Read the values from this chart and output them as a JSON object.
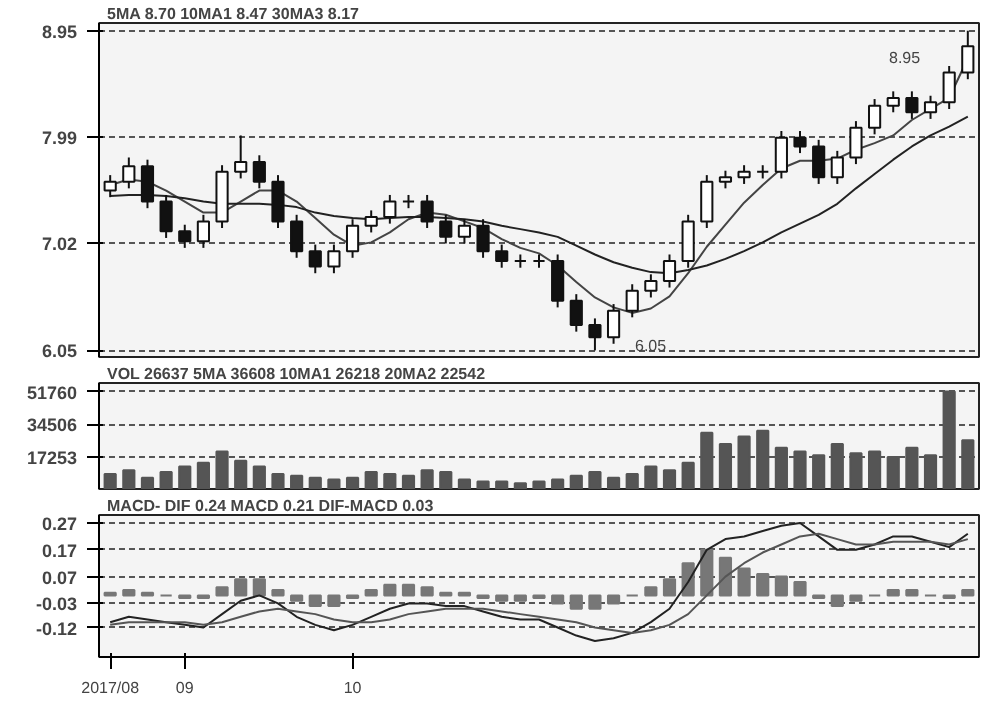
{
  "chart_data": [
    {
      "type": "candlestick",
      "categories": [
        "2017/08",
        null,
        null,
        null,
        "09",
        null,
        null,
        null,
        null,
        null,
        null,
        null,
        null,
        "10",
        null,
        null,
        null,
        null,
        null,
        null,
        null,
        null,
        null,
        null,
        null,
        null,
        null,
        null,
        null,
        null,
        null,
        null,
        null,
        null,
        null,
        null,
        null,
        null,
        null,
        null,
        null,
        null,
        null,
        null,
        null,
        null,
        null
      ],
      "ohlc": [
        [
          7.5,
          7.64,
          7.44,
          7.58
        ],
        [
          7.58,
          7.8,
          7.52,
          7.72
        ],
        [
          7.72,
          7.78,
          7.34,
          7.4
        ],
        [
          7.4,
          7.46,
          7.07,
          7.13
        ],
        [
          7.13,
          7.19,
          6.98,
          7.04
        ],
        [
          7.04,
          7.28,
          6.98,
          7.22
        ],
        [
          7.22,
          7.73,
          7.16,
          7.67
        ],
        [
          7.67,
          8.0,
          7.61,
          7.76
        ],
        [
          7.76,
          7.82,
          7.52,
          7.58
        ],
        [
          7.58,
          7.64,
          7.16,
          7.22
        ],
        [
          7.22,
          7.28,
          6.89,
          6.95
        ],
        [
          6.95,
          7.01,
          6.75,
          6.81
        ],
        [
          6.81,
          7.01,
          6.75,
          6.95
        ],
        [
          6.95,
          7.24,
          6.89,
          7.18
        ],
        [
          7.18,
          7.32,
          7.12,
          7.26
        ],
        [
          7.26,
          7.46,
          7.2,
          7.4
        ],
        [
          7.4,
          7.46,
          7.34,
          7.4
        ],
        [
          7.4,
          7.46,
          7.16,
          7.22
        ],
        [
          7.22,
          7.28,
          7.02,
          7.08
        ],
        [
          7.08,
          7.24,
          7.02,
          7.18
        ],
        [
          7.18,
          7.24,
          6.89,
          6.95
        ],
        [
          6.95,
          7.01,
          6.8,
          6.86
        ],
        [
          6.86,
          6.92,
          6.8,
          6.86
        ],
        [
          6.86,
          6.92,
          6.8,
          6.86
        ],
        [
          6.86,
          6.92,
          6.44,
          6.5
        ],
        [
          6.5,
          6.56,
          6.22,
          6.28
        ],
        [
          6.28,
          6.34,
          6.05,
          6.17
        ],
        [
          6.17,
          6.47,
          6.11,
          6.41
        ],
        [
          6.41,
          6.65,
          6.35,
          6.59
        ],
        [
          6.59,
          6.74,
          6.53,
          6.68
        ],
        [
          6.68,
          6.92,
          6.62,
          6.86
        ],
        [
          6.86,
          7.28,
          6.8,
          7.22
        ],
        [
          7.22,
          7.64,
          7.16,
          7.58
        ],
        [
          7.58,
          7.68,
          7.52,
          7.62
        ],
        [
          7.62,
          7.73,
          7.56,
          7.67
        ],
        [
          7.67,
          7.73,
          7.61,
          7.67
        ],
        [
          7.67,
          8.04,
          7.61,
          7.98
        ],
        [
          7.98,
          8.04,
          7.84,
          7.9
        ],
        [
          7.9,
          7.96,
          7.56,
          7.62
        ],
        [
          7.62,
          7.86,
          7.56,
          7.8
        ],
        [
          7.8,
          8.13,
          7.74,
          8.07
        ],
        [
          8.07,
          8.33,
          8.01,
          8.27
        ],
        [
          8.27,
          8.4,
          8.21,
          8.34
        ],
        [
          8.34,
          8.4,
          8.15,
          8.21
        ],
        [
          8.21,
          8.36,
          8.15,
          8.3
        ],
        [
          8.3,
          8.63,
          8.24,
          8.57
        ],
        [
          8.57,
          8.95,
          8.51,
          8.81
        ]
      ],
      "series": [
        {
          "type": "line",
          "color": "#444444",
          "values": [
            7.55,
            7.6,
            7.58,
            7.5,
            7.4,
            7.3,
            7.3,
            7.4,
            7.5,
            7.5,
            7.4,
            7.25,
            7.1,
            7.0,
            7.03,
            7.12,
            7.24,
            7.3,
            7.28,
            7.22,
            7.16,
            7.06,
            6.98,
            6.93,
            6.82,
            6.67,
            6.53,
            6.44,
            6.39,
            6.43,
            6.54,
            6.75,
            6.99,
            7.19,
            7.39,
            7.55,
            7.7,
            7.77,
            7.77,
            7.79,
            7.87,
            7.93,
            8.0,
            8.14,
            8.24,
            8.34,
            8.7
          ]
        },
        {
          "type": "line",
          "color": "#222222",
          "values": [
            7.45,
            7.46,
            7.46,
            7.45,
            7.43,
            7.4,
            7.38,
            7.38,
            7.38,
            7.37,
            7.35,
            7.3,
            7.27,
            7.25,
            7.24,
            7.25,
            7.26,
            7.26,
            7.25,
            7.24,
            7.22,
            7.18,
            7.15,
            7.12,
            7.08,
            7.0,
            6.92,
            6.85,
            6.8,
            6.76,
            6.75,
            6.78,
            6.82,
            6.88,
            6.95,
            7.03,
            7.12,
            7.2,
            7.28,
            7.38,
            7.52,
            7.65,
            7.78,
            7.9,
            8.0,
            8.08,
            8.17
          ]
        }
      ],
      "ylim": [
        5.99,
        9.02
      ],
      "yticks": [
        6.05,
        7.02,
        7.99,
        8.95
      ],
      "grid": "y",
      "tick_labels": "y",
      "annotations": [
        "5MA 8.70  10MA1 8.47  30MA3 8.17",
        "8.95",
        "6.05"
      ]
    },
    {
      "type": "bar",
      "categories": [
        "2017/08",
        null,
        null,
        null,
        "09",
        null,
        null,
        null,
        null,
        null,
        null,
        null,
        null,
        "10",
        null,
        null,
        null,
        null,
        null,
        null,
        null,
        null,
        null,
        null,
        null,
        null,
        null,
        null,
        null,
        null,
        null,
        null,
        null,
        null,
        null,
        null,
        null,
        null,
        null,
        null,
        null,
        null,
        null,
        null,
        null,
        null,
        null
      ],
      "color": "#555555",
      "values": [
        8000,
        10000,
        6000,
        9000,
        12000,
        14000,
        20000,
        15000,
        12000,
        8000,
        7000,
        6000,
        5000,
        6000,
        9000,
        8000,
        7000,
        10000,
        9000,
        5000,
        4000,
        4000,
        3000,
        4000,
        5000,
        7000,
        9000,
        6000,
        8000,
        12000,
        10000,
        14000,
        30000,
        24000,
        28000,
        31000,
        22000,
        20000,
        18000,
        24000,
        19000,
        20000,
        17000,
        22000,
        18000,
        52000,
        26000
      ],
      "ylim": [
        0,
        56500
      ],
      "yticks": [
        17253,
        34506,
        51760
      ],
      "grid": "y",
      "tick_labels": "y",
      "annotations": [
        "VOL 26637  5MA 36608  10MA1 26218  20MA2 22542"
      ]
    },
    {
      "type": "line",
      "categories": [
        "2017/08",
        null,
        null,
        null,
        "09",
        null,
        null,
        null,
        null,
        null,
        null,
        null,
        null,
        "10",
        null,
        null,
        null,
        null,
        null,
        null,
        null,
        null,
        null,
        null,
        null,
        null,
        null,
        null,
        null,
        null,
        null,
        null,
        null,
        null,
        null,
        null,
        null,
        null,
        null,
        null,
        null,
        null,
        null,
        null,
        null,
        null,
        null
      ],
      "series": [
        {
          "type": "bar",
          "color": "#777777",
          "values": [
            0.01,
            0.02,
            0.01,
            0.0,
            -0.01,
            -0.01,
            0.03,
            0.06,
            0.06,
            0.02,
            -0.02,
            -0.04,
            -0.04,
            -0.01,
            0.02,
            0.04,
            0.04,
            0.03,
            0.01,
            0.01,
            -0.01,
            -0.02,
            -0.02,
            -0.01,
            -0.03,
            -0.05,
            -0.05,
            -0.03,
            0.0,
            0.03,
            0.06,
            0.12,
            0.17,
            0.14,
            0.1,
            0.08,
            0.07,
            0.05,
            -0.01,
            -0.04,
            -0.02,
            0.0,
            0.02,
            0.02,
            0.0,
            -0.01,
            0.02
          ]
        },
        {
          "type": "line",
          "color": "#222222",
          "values": [
            -0.1,
            -0.08,
            -0.09,
            -0.1,
            -0.11,
            -0.12,
            -0.07,
            -0.02,
            0.0,
            -0.03,
            -0.08,
            -0.11,
            -0.13,
            -0.11,
            -0.08,
            -0.05,
            -0.03,
            -0.03,
            -0.04,
            -0.04,
            -0.06,
            -0.08,
            -0.09,
            -0.09,
            -0.12,
            -0.15,
            -0.17,
            -0.16,
            -0.14,
            -0.1,
            -0.05,
            0.05,
            0.17,
            0.21,
            0.22,
            0.24,
            0.26,
            0.27,
            0.22,
            0.17,
            0.17,
            0.19,
            0.22,
            0.22,
            0.2,
            0.18,
            0.23
          ]
        },
        {
          "type": "line",
          "color": "#555555",
          "values": [
            -0.11,
            -0.1,
            -0.1,
            -0.1,
            -0.1,
            -0.11,
            -0.1,
            -0.08,
            -0.06,
            -0.05,
            -0.06,
            -0.07,
            -0.09,
            -0.1,
            -0.1,
            -0.09,
            -0.07,
            -0.06,
            -0.05,
            -0.05,
            -0.05,
            -0.06,
            -0.07,
            -0.08,
            -0.09,
            -0.1,
            -0.12,
            -0.13,
            -0.14,
            -0.13,
            -0.11,
            -0.07,
            0.0,
            0.07,
            0.12,
            0.16,
            0.19,
            0.22,
            0.23,
            0.21,
            0.19,
            0.19,
            0.2,
            0.2,
            0.2,
            0.19,
            0.21
          ]
        }
      ],
      "ylim": [
        -0.23,
        0.3
      ],
      "yticks": [
        -0.12,
        -0.03,
        0.07,
        0.17,
        0.27
      ],
      "grid": "y",
      "annotations": [
        "MACD- DIF 0.24  MACD 0.21  DIF-MACD 0.03"
      ]
    }
  ]
}
